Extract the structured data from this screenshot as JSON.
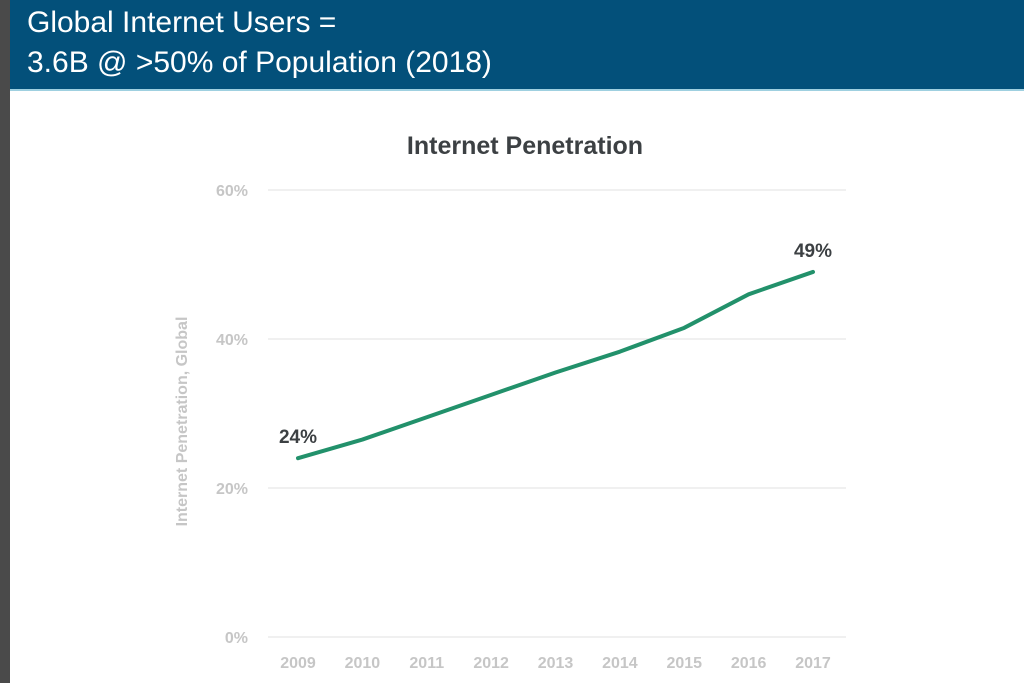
{
  "slide": {
    "title_line1": "Global Internet Users =",
    "title_line2": "3.6B @ >50% of Population (2018)",
    "header_color": "#03507a"
  },
  "chart_data": {
    "type": "line",
    "title": "Internet Penetration",
    "xlabel": "",
    "ylabel": "Internet Penetration, Global",
    "categories": [
      "2009",
      "2010",
      "2011",
      "2012",
      "2013",
      "2014",
      "2015",
      "2016",
      "2017"
    ],
    "series": [
      {
        "name": "Internet Penetration, Global",
        "values": [
          24,
          26.5,
          29.5,
          32.5,
          35.5,
          38.3,
          41.5,
          46,
          49
        ],
        "color": "#22916b"
      }
    ],
    "ylim": [
      0,
      60
    ],
    "yticks": [
      0,
      20,
      40,
      60
    ],
    "ytick_labels": [
      "0%",
      "20%",
      "40%",
      "60%"
    ],
    "grid": true,
    "legend": "none",
    "annotations": [
      {
        "category": "2009",
        "text": "24%"
      },
      {
        "category": "2017",
        "text": "49%"
      }
    ]
  }
}
